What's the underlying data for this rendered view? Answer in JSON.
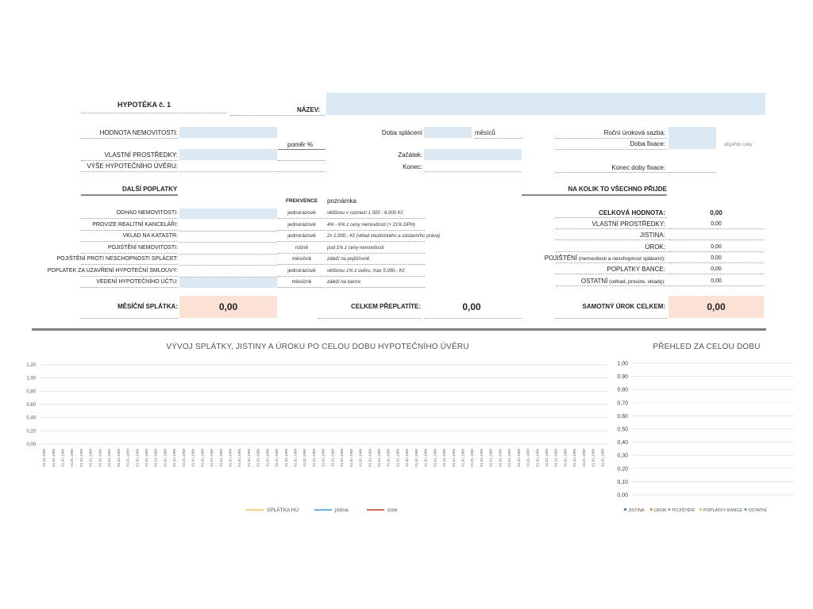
{
  "header": {
    "title": "HYPOTÉKA č. 1",
    "name_label": "NÁZEV:"
  },
  "top": {
    "property_value": "HODNOTA NEMOVITOSTI:",
    "own_funds": "VLASTNÍ PROSTŘEDKY:",
    "mortgage_amount": "VÝŠE HYPOTEČNÍHO ÚVĚRU:",
    "ratio": "poměr %",
    "repayment_period": "Doba splácení",
    "months": "měsíců",
    "start": "Začátek:",
    "end": "Konec:",
    "annual_rate": "Roční úroková sazba:",
    "fixation_period": "Doba fixace:",
    "fill_years": "doplňte roky",
    "fixation_end": "Konec doby fixace:"
  },
  "fees": {
    "heading": "DALŠÍ POPLATKY",
    "freq_header": "FREKVENCE",
    "note_header": "poznámka",
    "rows": [
      {
        "label": "ODHAD NEMOVITOSTI:",
        "freq": "jednorázově",
        "note": "většinou v rozmezí 1.500 - 6.000 Kč",
        "shaded": true
      },
      {
        "label": "PROVIZE REALITNÍ KANCELÁŘI:",
        "freq": "jednorázově",
        "note": "4% - 6% z ceny nemovitosti (+ 21% DPH)",
        "shaded": false
      },
      {
        "label": "VKLAD NA KATASTR:",
        "freq": "jednorázově",
        "note": "2x 1.000,- Kč (vklad vlastnického a zástavního práva)",
        "shaded": false
      },
      {
        "label": "POJIŠTĚNÍ NEMOVITOSTI:",
        "freq": "ročně",
        "note": "pod 1% z ceny nemovitosti",
        "shaded": false
      },
      {
        "label": "POJIŠTĚNÍ PROTI NESCHOPNOSTI SPLÁCET:",
        "freq": "měsíčně",
        "note": "záleží na pojišťovně",
        "shaded": false
      },
      {
        "label": "POPLATEK ZA UZAVŘENÍ HYPOTEČNÍ SMLOUVY:",
        "freq": "jednorázově",
        "note": "většinou 1% z úvěru, max 5.000,- Kč",
        "shaded": false
      },
      {
        "label": "VEDENÍ HYPOTEČNÍHO ÚČTU:",
        "freq": "měsíčně",
        "note": "záleží na bance",
        "shaded": true
      }
    ]
  },
  "summary": {
    "heading": "NA KOLIK TO VŠECHNO PŘIJDE",
    "total_label": "CELKOVÁ HODNOTA:",
    "total_value": "0,00",
    "rows": [
      {
        "label": "VLASTNÍ PROSTŘEDKY:",
        "value": "0,00"
      },
      {
        "label": "JISTINA:",
        "value": ""
      },
      {
        "label": "ÚROK:",
        "value": "0,00"
      },
      {
        "label": "POJIŠTĚNÍ",
        "suffix": " (nemovitosti a neschopnost splácení):",
        "value": "0,00"
      },
      {
        "label": "POPLATKY BANCE:",
        "value": "0,00"
      },
      {
        "label": "OSTATNÍ",
        "suffix": " (odhad, provize, vklady):",
        "value": "0,00"
      }
    ]
  },
  "totals": {
    "monthly_label": "MĚSÍČNÍ SPLÁTKA:",
    "monthly_value": "0,00",
    "overpay_label": "CELKEM PŘEPLATÍTE:",
    "overpay_value": "0,00",
    "interest_label": "SAMOTNÝ ÚROK CELKEM:",
    "interest_value": "0,00"
  },
  "chart_data": [
    {
      "type": "line",
      "title": "VÝVOJ SPLÁTKY, JISTINY A ÚROKU PO CELOU DOBU HYPOTEČNÍHO ÚVĚRU",
      "yticks": [
        "1,20",
        "1,00",
        "0,80",
        "0,60",
        "0,40",
        "0,20",
        "0,00"
      ],
      "ylim": [
        0,
        1.2
      ],
      "x_category_label": "01.01.1900",
      "x_category_count": 61,
      "series": [
        {
          "name": "SPLÁTKA HÚ",
          "color": "#f2c14e",
          "values": []
        },
        {
          "name": "jistina",
          "color": "#2ea0d6",
          "values": []
        },
        {
          "name": "úrok",
          "color": "#c0392b",
          "values": []
        }
      ]
    },
    {
      "type": "bar",
      "title": "PŘEHLED ZA CELOU DOBU",
      "yticks": [
        "1,00",
        "0,90",
        "0,80",
        "0,70",
        "0,60",
        "0,50",
        "0,40",
        "0,30",
        "0,20",
        "0,10",
        "0,00"
      ],
      "ylim": [
        0,
        1
      ],
      "series": [
        {
          "name": "JISTINA",
          "color": "#4a86c5",
          "values": []
        },
        {
          "name": "ÚROK",
          "color": "#e8893b",
          "values": []
        },
        {
          "name": "POJIŠTĚNÍ",
          "color": "#a5a5a5",
          "values": []
        },
        {
          "name": "POPLATKY BANCE",
          "color": "#f2c14e",
          "values": []
        },
        {
          "name": "OSTATNÍ",
          "color": "#5b9bd5",
          "values": []
        }
      ]
    }
  ]
}
